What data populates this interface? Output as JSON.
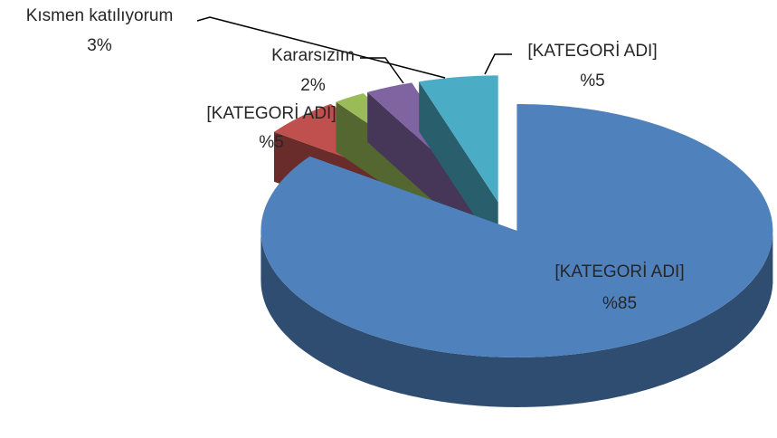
{
  "chart_data": {
    "type": "pie",
    "three_d": true,
    "exploded": true,
    "categories": [
      "[KATEGORİ ADI]",
      "[KATEGORİ ADI]",
      "Kararsızım",
      "Kısmen katılıyorum",
      "[KATEGORİ ADI]"
    ],
    "values": [
      85,
      5,
      2,
      3,
      5
    ],
    "value_labels": [
      "%85",
      "%5",
      "2%",
      "3%",
      "%5"
    ],
    "colors": [
      "#4f81bd",
      "#c0504d",
      "#9bbb59",
      "#8064a2",
      "#4bacc6"
    ]
  }
}
